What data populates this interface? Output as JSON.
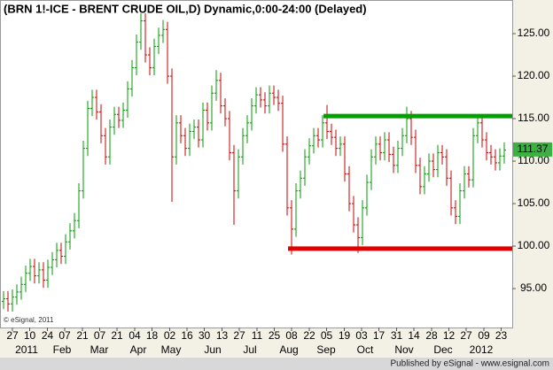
{
  "chart_data": {
    "type": "ohlc",
    "title": "(BRN 1!-ICE - BRENT CRUDE OIL,D) Dynamic,0:00-24:00 (Delayed)",
    "copyright": "© eSignal, 2011",
    "footer": "Published by eSignal - www.esignal.com",
    "up_color": "#009a00",
    "down_color": "#c80000",
    "open": [
      93.5,
      93.8,
      93.2,
      94.0,
      94.6,
      95.5,
      96.8,
      97.6,
      96.5,
      97.2,
      96.0,
      97.5,
      98.4,
      99.5,
      98.8,
      100.5,
      101.8,
      103.0,
      106.5,
      111.5,
      116.2,
      117.5,
      115.8,
      113.0,
      110.5,
      114.0,
      115.5,
      114.8,
      116.0,
      118.5,
      121.0,
      124.0,
      126.5,
      122.5,
      121.0,
      123.5,
      124.8,
      125.5,
      120.0,
      110.5,
      114.5,
      113.0,
      111.5,
      113.5,
      114.0,
      112.5,
      116.0,
      114.5,
      118.0,
      119.5,
      116.5,
      115.0,
      111.0,
      106.5,
      110.5,
      113.0,
      114.5,
      116.5,
      117.8,
      117.2,
      116.5,
      118.0,
      117.5,
      116.8,
      112.0,
      104.5,
      102.0,
      106.5,
      108.0,
      110.5,
      111.8,
      113.0,
      112.5,
      114.5,
      113.5,
      112.8,
      111.5,
      112.0,
      108.5,
      105.0,
      102.5,
      101.0,
      104.5,
      107.5,
      110.5,
      112.0,
      111.0,
      112.5,
      110.8,
      109.5,
      111.5,
      113.0,
      115.0,
      112.8,
      109.5,
      107.0,
      108.5,
      110.0,
      109.0,
      111.0,
      110.5,
      108.0,
      104.5,
      103.5,
      106.5,
      108.5,
      107.8,
      113.0,
      114.5,
      112.5,
      111.0,
      110.5,
      109.8,
      110.6
    ],
    "high": [
      94.7,
      94.7,
      94.9,
      95.5,
      96.4,
      97.7,
      98.5,
      98.5,
      98.1,
      98.1,
      98.4,
      99.3,
      100.4,
      100.4,
      101.4,
      102.7,
      103.9,
      107.4,
      112.4,
      117.1,
      118.4,
      118.4,
      116.7,
      113.9,
      114.9,
      116.4,
      116.4,
      116.9,
      119.4,
      121.9,
      124.9,
      127.4,
      127.4,
      123.4,
      124.4,
      125.7,
      126.6,
      126.4,
      120.9,
      115.4,
      115.4,
      113.9,
      114.4,
      114.9,
      114.9,
      116.9,
      116.9,
      118.9,
      120.7,
      120.4,
      117.4,
      115.9,
      111.9,
      111.4,
      113.9,
      115.4,
      117.4,
      118.7,
      118.7,
      118.1,
      118.9,
      118.9,
      118.4,
      117.7,
      112.9,
      105.4,
      107.4,
      108.9,
      111.4,
      112.7,
      113.9,
      113.9,
      115.4,
      116.6,
      114.4,
      113.7,
      112.9,
      112.9,
      109.4,
      105.9,
      103.4,
      105.4,
      108.4,
      111.4,
      112.9,
      112.9,
      113.4,
      113.4,
      111.7,
      112.4,
      113.9,
      116.4,
      115.9,
      113.7,
      110.4,
      109.4,
      110.9,
      110.9,
      111.9,
      111.9,
      111.4,
      108.9,
      105.4,
      107.4,
      109.4,
      109.4,
      113.9,
      115.4,
      115.4,
      113.4,
      111.9,
      111.4,
      111.5,
      112.2
    ],
    "low": [
      92.6,
      92.3,
      92.3,
      93.1,
      93.7,
      94.6,
      95.9,
      95.6,
      95.6,
      95.1,
      95.1,
      96.6,
      97.5,
      97.9,
      97.9,
      99.6,
      100.9,
      102.1,
      105.6,
      110.6,
      115.3,
      114.9,
      112.1,
      109.6,
      109.6,
      113.1,
      113.9,
      113.9,
      115.1,
      117.6,
      120.1,
      123.1,
      121.6,
      120.1,
      120.1,
      122.6,
      123.9,
      119.1,
      105.2,
      109.6,
      112.1,
      110.6,
      110.6,
      112.6,
      111.6,
      111.6,
      113.6,
      113.6,
      117.1,
      115.6,
      114.1,
      110.1,
      102.5,
      105.6,
      109.6,
      112.1,
      113.6,
      115.6,
      116.3,
      115.6,
      115.6,
      116.6,
      115.9,
      111.1,
      103.6,
      99.0,
      101.1,
      105.6,
      107.1,
      109.6,
      110.9,
      111.6,
      111.6,
      112.6,
      111.9,
      110.6,
      110.6,
      107.6,
      104.1,
      101.6,
      99.2,
      100.1,
      103.6,
      106.6,
      109.6,
      110.1,
      110.1,
      109.9,
      108.6,
      108.6,
      110.6,
      112.1,
      111.9,
      108.6,
      106.1,
      106.1,
      107.6,
      108.1,
      108.1,
      109.6,
      107.1,
      103.6,
      102.6,
      102.6,
      105.6,
      106.9,
      106.9,
      112.1,
      111.6,
      110.1,
      109.6,
      108.9,
      108.9,
      109.7
    ],
    "close": [
      93.8,
      93.2,
      94.0,
      94.6,
      95.5,
      96.8,
      97.6,
      96.5,
      97.2,
      96.0,
      97.5,
      98.4,
      99.5,
      98.8,
      100.5,
      101.8,
      103.0,
      106.5,
      111.5,
      116.2,
      117.5,
      115.8,
      113.0,
      110.5,
      114.0,
      115.5,
      114.8,
      116.0,
      118.5,
      121.0,
      124.0,
      126.5,
      122.5,
      121.0,
      123.5,
      124.8,
      125.5,
      120.0,
      110.5,
      114.5,
      113.0,
      111.5,
      113.5,
      114.0,
      112.5,
      116.0,
      114.5,
      118.0,
      119.5,
      116.5,
      115.0,
      111.0,
      106.5,
      110.5,
      113.0,
      114.5,
      116.5,
      117.8,
      117.2,
      116.5,
      118.0,
      117.5,
      116.8,
      112.0,
      104.5,
      102.0,
      106.5,
      108.0,
      110.5,
      111.8,
      113.0,
      112.5,
      114.5,
      113.5,
      112.8,
      111.5,
      112.0,
      108.5,
      105.0,
      102.5,
      101.0,
      104.5,
      107.5,
      110.5,
      112.0,
      111.0,
      112.5,
      110.8,
      109.5,
      111.5,
      113.0,
      115.0,
      112.8,
      109.5,
      107.0,
      108.5,
      110.0,
      109.0,
      111.0,
      110.5,
      108.0,
      104.5,
      103.5,
      106.5,
      108.5,
      107.8,
      113.0,
      114.5,
      112.5,
      111.0,
      110.5,
      109.8,
      110.6,
      111.3
    ],
    "last_price": 111.37,
    "levels": [
      {
        "value": 115.3,
        "start": 72.2,
        "color": "#00a000"
      },
      {
        "value": 99.7,
        "start": 64.2,
        "color": "#e00000"
      }
    ],
    "xlim": [
      -0.8,
      114.8
    ],
    "ylim": [
      90.42,
      128.96
    ],
    "yticks": [
      {
        "value": 95,
        "label": "95.00"
      },
      {
        "value": 100,
        "label": "100.00"
      },
      {
        "value": 105,
        "label": "105.00"
      },
      {
        "value": 110,
        "label": "110.00"
      },
      {
        "value": 115,
        "label": "115.00"
      },
      {
        "value": 120,
        "label": "120.00"
      },
      {
        "value": 125,
        "label": "125.00"
      }
    ],
    "xticks": [
      {
        "value": 2,
        "label": "27"
      },
      {
        "value": 5.9,
        "label": "10"
      },
      {
        "value": 9.9,
        "label": "24"
      },
      {
        "value": 13.8,
        "label": "07"
      },
      {
        "value": 17.8,
        "label": "21"
      },
      {
        "value": 21.7,
        "label": "07"
      },
      {
        "value": 25.6,
        "label": "21"
      },
      {
        "value": 29.6,
        "label": "04"
      },
      {
        "value": 33.5,
        "label": "18"
      },
      {
        "value": 37.5,
        "label": "02"
      },
      {
        "value": 41.4,
        "label": "16"
      },
      {
        "value": 45.3,
        "label": "30"
      },
      {
        "value": 49.3,
        "label": "13"
      },
      {
        "value": 53.2,
        "label": "27"
      },
      {
        "value": 57.2,
        "label": "11"
      },
      {
        "value": 61.1,
        "label": "25"
      },
      {
        "value": 65,
        "label": "08"
      },
      {
        "value": 69,
        "label": "22"
      },
      {
        "value": 72.9,
        "label": "05"
      },
      {
        "value": 76.9,
        "label": "19"
      },
      {
        "value": 80.8,
        "label": "03"
      },
      {
        "value": 84.7,
        "label": "17"
      },
      {
        "value": 88.7,
        "label": "31"
      },
      {
        "value": 92.6,
        "label": "14"
      },
      {
        "value": 96.6,
        "label": "28"
      },
      {
        "value": 100.5,
        "label": "12"
      },
      {
        "value": 104.4,
        "label": "27"
      },
      {
        "value": 108.4,
        "label": "09"
      },
      {
        "value": 112.3,
        "label": "23"
      }
    ],
    "month_labels": [
      {
        "value": 5.2,
        "label": "2011"
      },
      {
        "value": 13.2,
        "label": "Feb"
      },
      {
        "value": 21.6,
        "label": "Mar"
      },
      {
        "value": 30.4,
        "label": "Apr"
      },
      {
        "value": 37.8,
        "label": "May"
      },
      {
        "value": 47.2,
        "label": "Jun"
      },
      {
        "value": 55.6,
        "label": "Jul"
      },
      {
        "value": 64.4,
        "label": "Aug"
      },
      {
        "value": 72.8,
        "label": "Sep"
      },
      {
        "value": 81.6,
        "label": "Oct"
      },
      {
        "value": 90.4,
        "label": "Nov"
      },
      {
        "value": 99.2,
        "label": "Dec"
      },
      {
        "value": 107.8,
        "label": "2012"
      }
    ]
  }
}
